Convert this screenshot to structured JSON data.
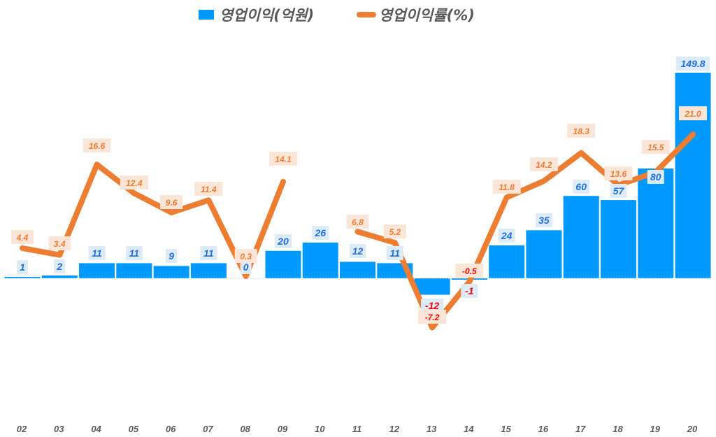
{
  "legend": {
    "bar_label": "영업이익(억원)",
    "line_label": "영업이익률(%)"
  },
  "colors": {
    "bar": "#0099ff",
    "line": "#ed7d31",
    "bar_label_text": "#1f6fe5",
    "bar_label_bg": "#ddebf7",
    "line_label_bg": "#fbe5d6",
    "negative_text": "#ff0000",
    "axis_text": "#595959"
  },
  "chart_data": {
    "type": "bar",
    "title": "",
    "xlabel": "",
    "ylabel": "",
    "categories": [
      "02",
      "03",
      "04",
      "05",
      "06",
      "07",
      "08",
      "09",
      "10",
      "11",
      "12",
      "13",
      "14",
      "15",
      "16",
      "17",
      "18",
      "19",
      "20"
    ],
    "series": [
      {
        "name": "영업이익(억원)",
        "type": "bar",
        "axis": "primary",
        "values": [
          1,
          2,
          11,
          11,
          9,
          11,
          0,
          20,
          26,
          12,
          11,
          -12,
          -1,
          24,
          35,
          60,
          57,
          80,
          149.8
        ],
        "labels": [
          "1",
          "2",
          "11",
          "11",
          "9",
          "11",
          "0",
          "20",
          "26",
          "12",
          "11",
          "-12",
          "-1",
          "24",
          "35",
          "60",
          "57",
          "80",
          "149.8"
        ]
      },
      {
        "name": "영업이익률(%)",
        "type": "line",
        "axis": "secondary",
        "values": [
          4.4,
          3.4,
          16.6,
          12.4,
          9.6,
          11.4,
          0.3,
          14.1,
          null,
          6.8,
          5.2,
          -7.2,
          -0.5,
          11.8,
          14.2,
          18.3,
          13.6,
          15.5,
          21.0
        ],
        "labels": [
          "4.4",
          "3.4",
          "16.6",
          "12.4",
          "9.6",
          "11.4",
          "0.3",
          "14.1",
          "",
          "6.8",
          "5.2",
          "-7.2",
          "-0.5",
          "11.8",
          "14.2",
          "18.3",
          "13.6",
          "15.5",
          "21.0"
        ]
      }
    ],
    "grid": false,
    "legend_position": "top",
    "axis_visible": false,
    "data_labels": true
  }
}
